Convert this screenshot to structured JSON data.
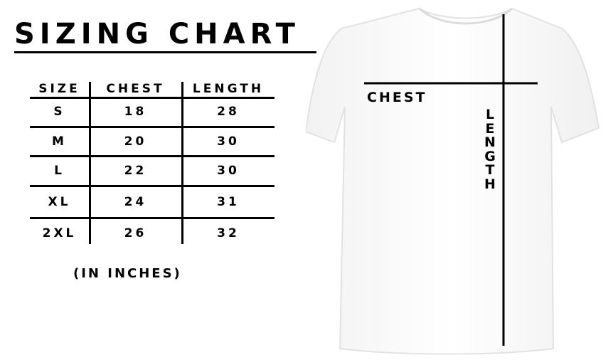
{
  "title": "SIZING CHART",
  "table": {
    "headers": [
      "SIZE",
      "CHEST",
      "LENGTH"
    ],
    "rows": [
      [
        "S",
        "18",
        "28"
      ],
      [
        "M",
        "20",
        "30"
      ],
      [
        "L",
        "22",
        "30"
      ],
      [
        "XL",
        "24",
        "31"
      ],
      [
        "2XL",
        "26",
        "32"
      ]
    ]
  },
  "units_note": "(IN INCHES)",
  "diagram": {
    "chest_label": "CHEST",
    "length_label": "LENGTH",
    "shirt_color": "#ffffff"
  }
}
